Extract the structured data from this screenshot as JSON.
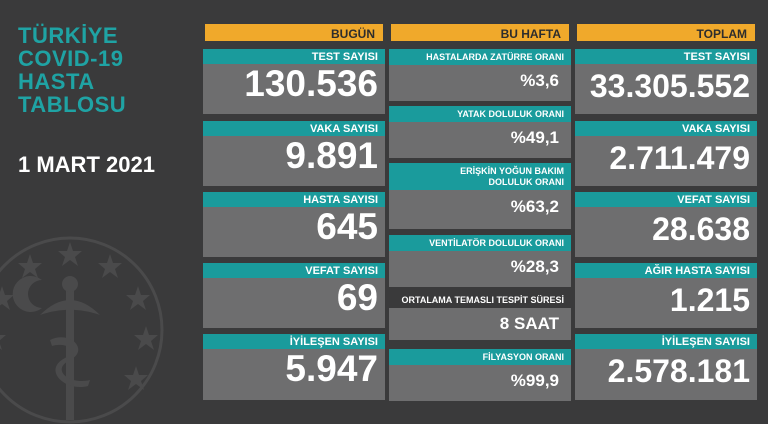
{
  "title_lines": [
    "TÜRKİYE",
    "COVID-19",
    "HASTA",
    "TABLOSU"
  ],
  "date": "1 MART 2021",
  "colors": {
    "background": "#3a3a3b",
    "teal": "#1a9b9c",
    "orange": "#f0a92b",
    "cell_gray": "#6e6e6f"
  },
  "bugun": {
    "header": "BUGÜN",
    "items": [
      {
        "label": "TEST SAYISI",
        "value": "130.536"
      },
      {
        "label": "VAKA SAYISI",
        "value": "9.891"
      },
      {
        "label": "HASTA SAYISI",
        "value": "645"
      },
      {
        "label": "VEFAT SAYISI",
        "value": "69"
      },
      {
        "label": "İYİLEŞEN SAYISI",
        "value": "5.947"
      }
    ]
  },
  "bu_hafta": {
    "header": "BU HAFTA",
    "items": [
      {
        "label": "HASTALARDA ZATÜRRE ORANI",
        "value": "%3,6"
      },
      {
        "label": "YATAK DOLULUK ORANI",
        "value": "%49,1"
      },
      {
        "label": "ERİŞKİN YOĞUN BAKIM DOLULUK ORANI",
        "value": "%63,2"
      },
      {
        "label": "VENTİLATÖR DOLULUK ORANI",
        "value": "%28,3"
      },
      {
        "label": "ORTALAMA TEMASLI TESPİT SÜRESİ",
        "value": "8 SAAT"
      },
      {
        "label": "FİLYASYON ORANI",
        "value": "%99,9"
      }
    ]
  },
  "toplam": {
    "header": "TOPLAM",
    "items": [
      {
        "label": "TEST SAYISI",
        "value": "33.305.552"
      },
      {
        "label": "VAKA SAYISI",
        "value": "2.711.479"
      },
      {
        "label": "VEFAT SAYISI",
        "value": "28.638"
      },
      {
        "label": "AĞIR HASTA SAYISI",
        "value": "1.215"
      },
      {
        "label": "İYİLEŞEN SAYISI",
        "value": "2.578.181"
      }
    ]
  }
}
